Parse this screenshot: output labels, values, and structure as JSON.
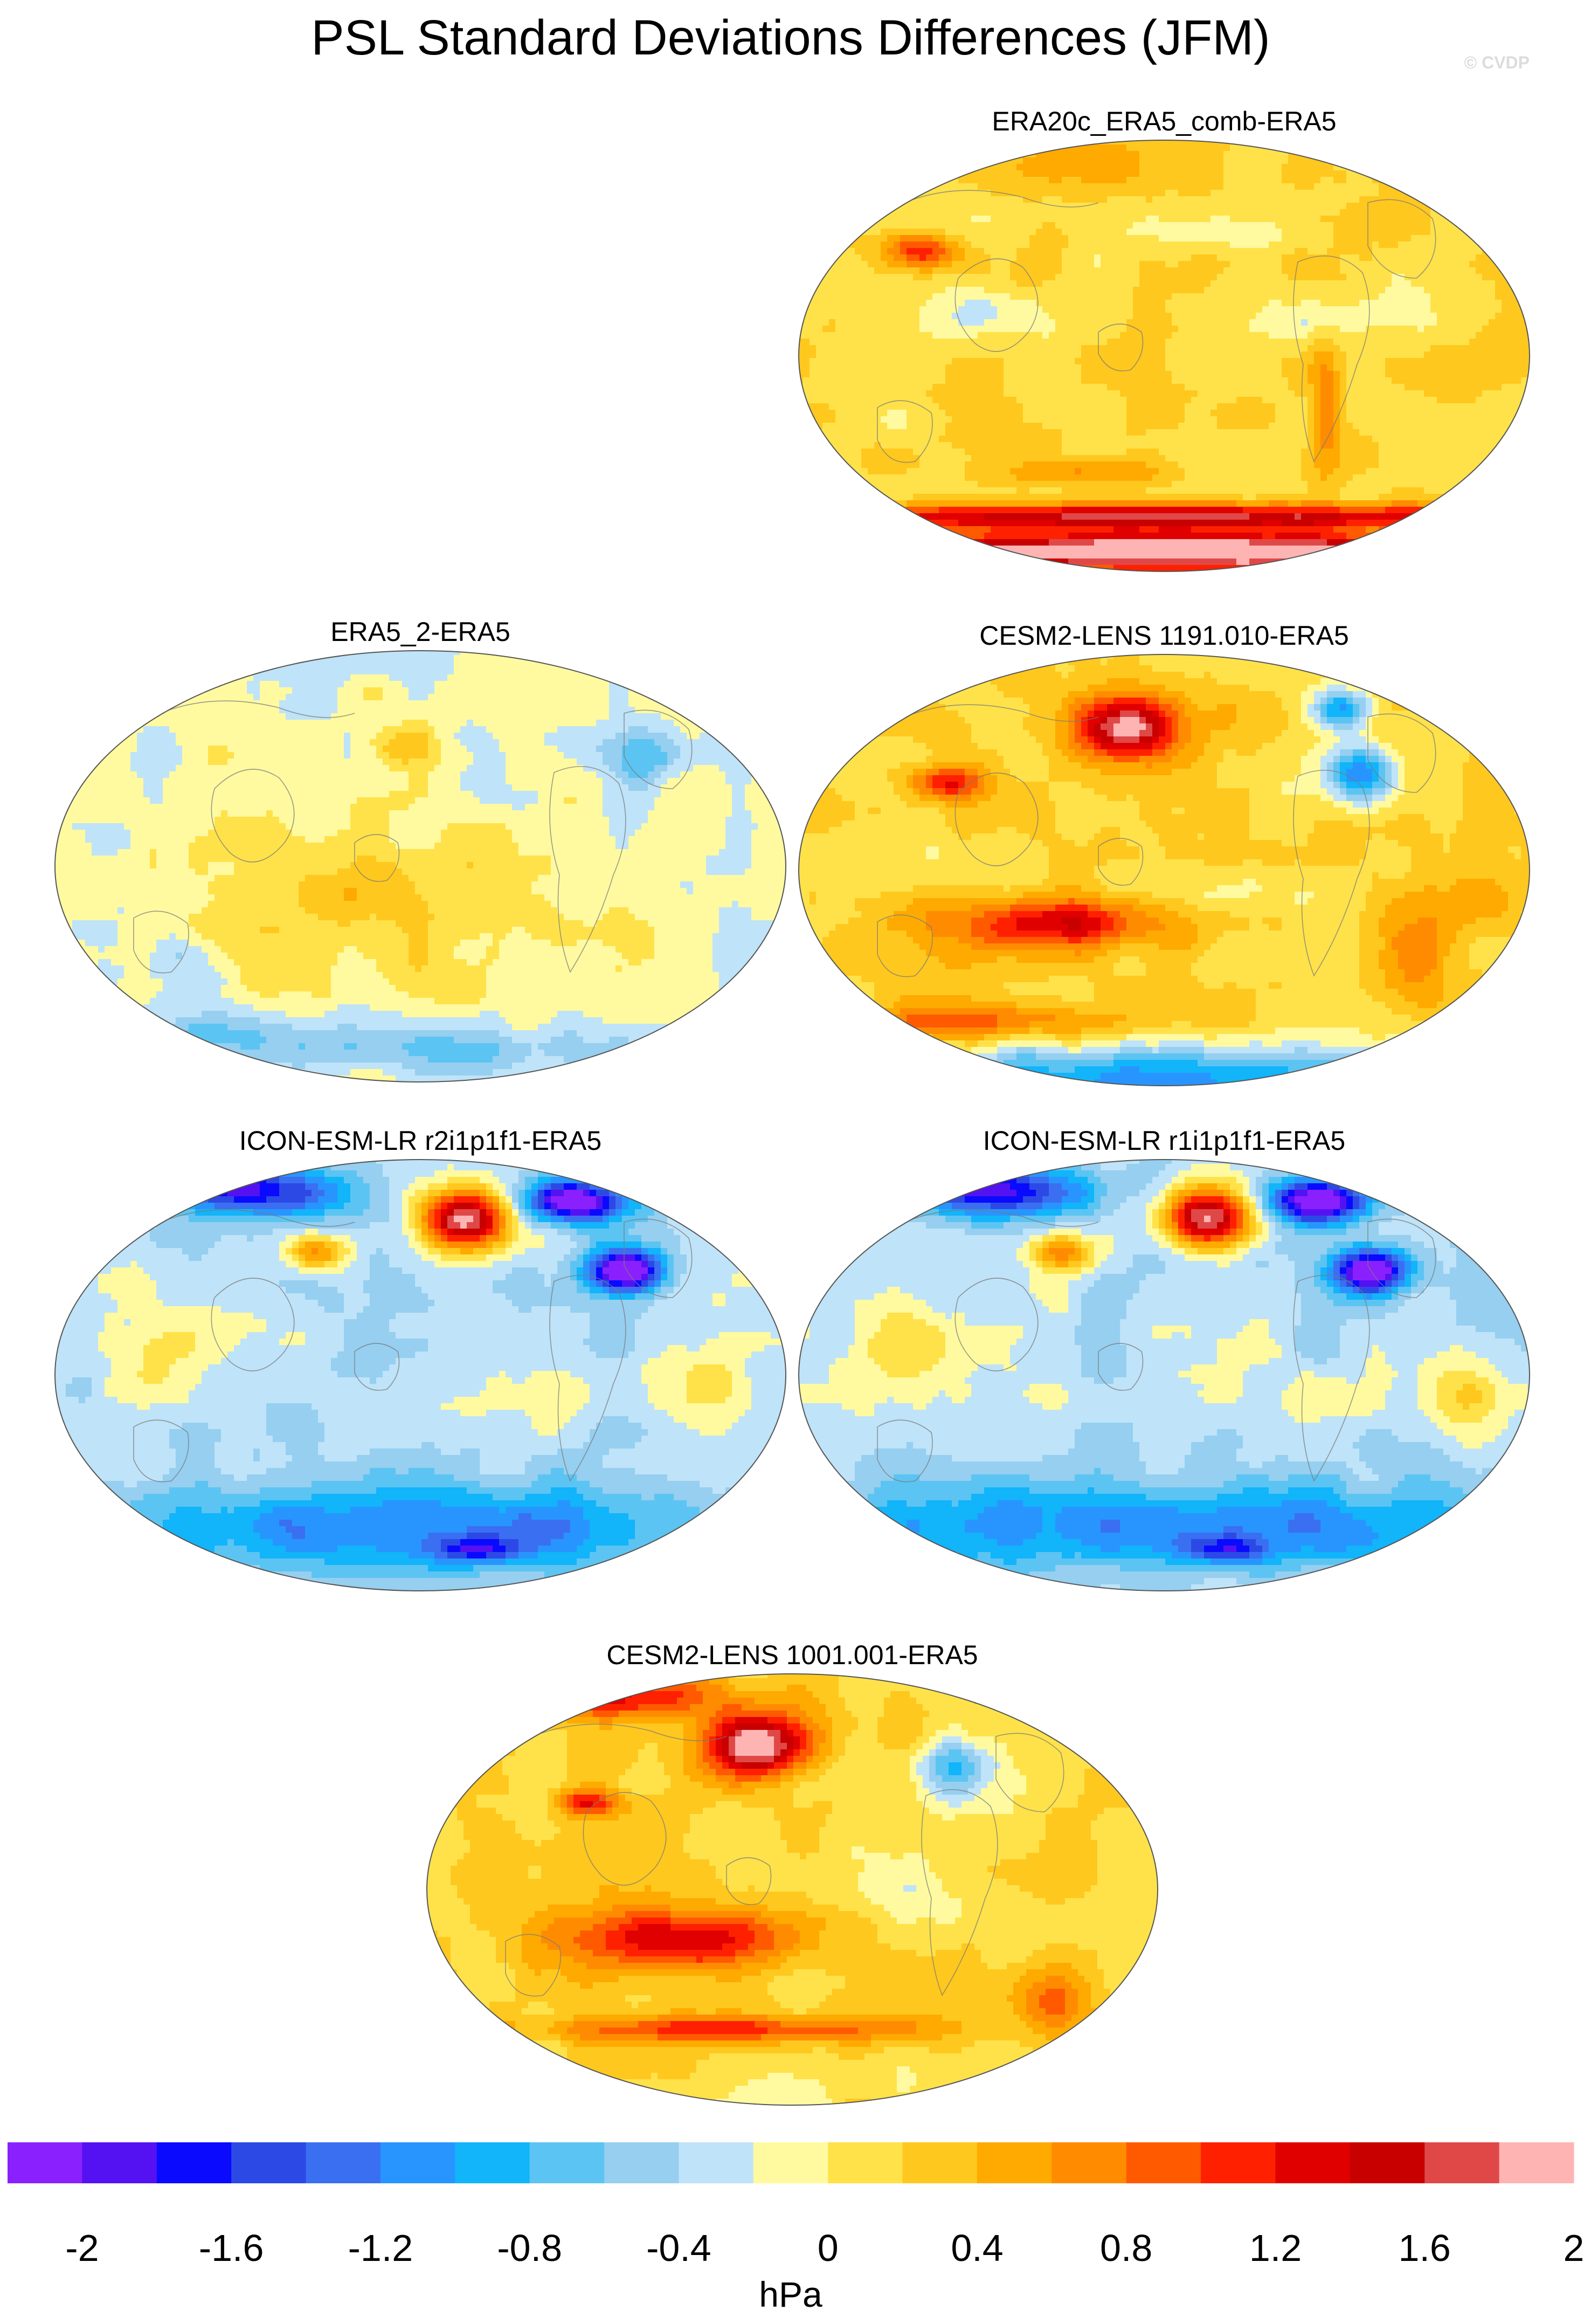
{
  "title": "PSL Standard Deviations Differences (JFM)",
  "credit": "© CVDP",
  "panels": [
    {
      "id": "era20c",
      "title": "ERA20c_ERA5_comb-ERA5",
      "base": 0,
      "pattern": "era20c"
    },
    {
      "id": "era5_2",
      "title": "ERA5_2-ERA5",
      "base": 0,
      "pattern": "era5_2"
    },
    {
      "id": "cesm1191",
      "title": "CESM2-LENS 1191.010-ERA5",
      "base": 0,
      "pattern": "cesm"
    },
    {
      "id": "icon_r2",
      "title": "ICON-ESM-LR r2i1p1f1-ERA5",
      "base": 0,
      "pattern": "icon"
    },
    {
      "id": "icon_r1",
      "title": "ICON-ESM-LR r1i1p1f1-ERA5",
      "base": 0,
      "pattern": "icon"
    },
    {
      "id": "cesm1001",
      "title": "CESM2-LENS 1001.001-ERA5",
      "base": 0,
      "pattern": "cesm1001"
    }
  ],
  "colorbar": {
    "units": "hPa",
    "colors": [
      "#8b20ff",
      "#5412f2",
      "#0a0aff",
      "#2c49e6",
      "#3a6ff2",
      "#2895ff",
      "#12b4fa",
      "#5cc4f2",
      "#96cff0",
      "#bfe3f8",
      "#fffaa0",
      "#ffe24a",
      "#ffc81e",
      "#ffaa00",
      "#ff8c00",
      "#ff5a00",
      "#ff2000",
      "#e00000",
      "#c80000",
      "#e04848",
      "#ffb4b4"
    ],
    "tick_labels": [
      "-2",
      "-1.6",
      "-1.2",
      "-0.8",
      "-0.4",
      "0",
      "0.4",
      "0.8",
      "1.2",
      "1.6",
      "2"
    ]
  }
}
